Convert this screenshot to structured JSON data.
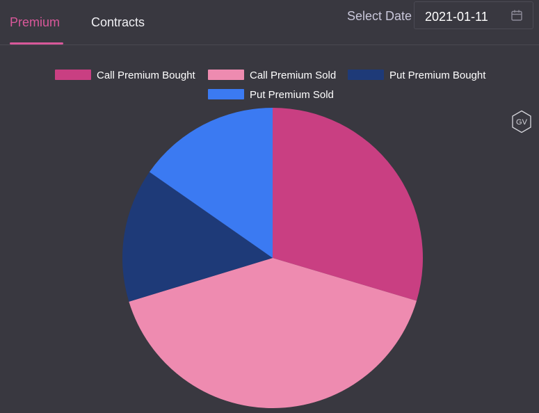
{
  "tabs": [
    {
      "label": "Premium",
      "active": true
    },
    {
      "label": "Contracts",
      "active": false
    }
  ],
  "date_picker": {
    "label": "Select Date",
    "value": "2021-01-11"
  },
  "badge": {
    "text": "GV"
  },
  "colors": {
    "accent": "#d9589a",
    "call_bought": "#c93f82",
    "call_sold": "#ee8bb0",
    "put_bought": "#1e3a78",
    "put_sold": "#3b7af2"
  },
  "chart_data": {
    "type": "pie",
    "title": "",
    "legend_position": "top",
    "slices": [
      {
        "label": "Call Premium Bought",
        "value": 29.6,
        "color": "#c93f82"
      },
      {
        "label": "Call Premium Sold",
        "value": 40.7,
        "color": "#ee8bb0"
      },
      {
        "label": "Put Premium Bought",
        "value": 14.4,
        "color": "#1e3a78"
      },
      {
        "label": "Put Premium Sold",
        "value": 15.3,
        "color": "#3b7af2"
      }
    ]
  }
}
